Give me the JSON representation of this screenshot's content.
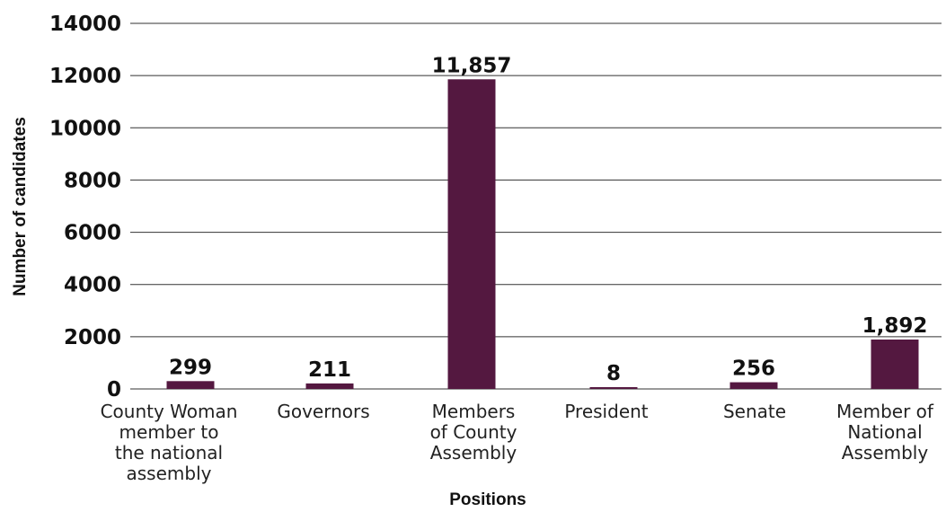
{
  "chart_data": {
    "type": "bar",
    "categories": [
      [
        "County Woman",
        "member to",
        "the national",
        "assembly"
      ],
      [
        "Governors"
      ],
      [
        "Members",
        "of County",
        "Assembly"
      ],
      [
        "President"
      ],
      [
        "Senate"
      ],
      [
        "Member of",
        "National",
        "Assembly"
      ]
    ],
    "values": [
      299,
      211,
      11857,
      8,
      256,
      1892
    ],
    "value_labels": [
      "299",
      "211",
      "11,857",
      "8",
      "256",
      "1,892"
    ],
    "xlabel": "Positions",
    "ylabel": "Number of candidates",
    "ylim": [
      0,
      14000
    ],
    "yticks": [
      "0",
      "2000",
      "4000",
      "6000",
      "8000",
      "10000",
      "12000",
      "14000"
    ],
    "grid": true,
    "bar_color": "#541840"
  }
}
